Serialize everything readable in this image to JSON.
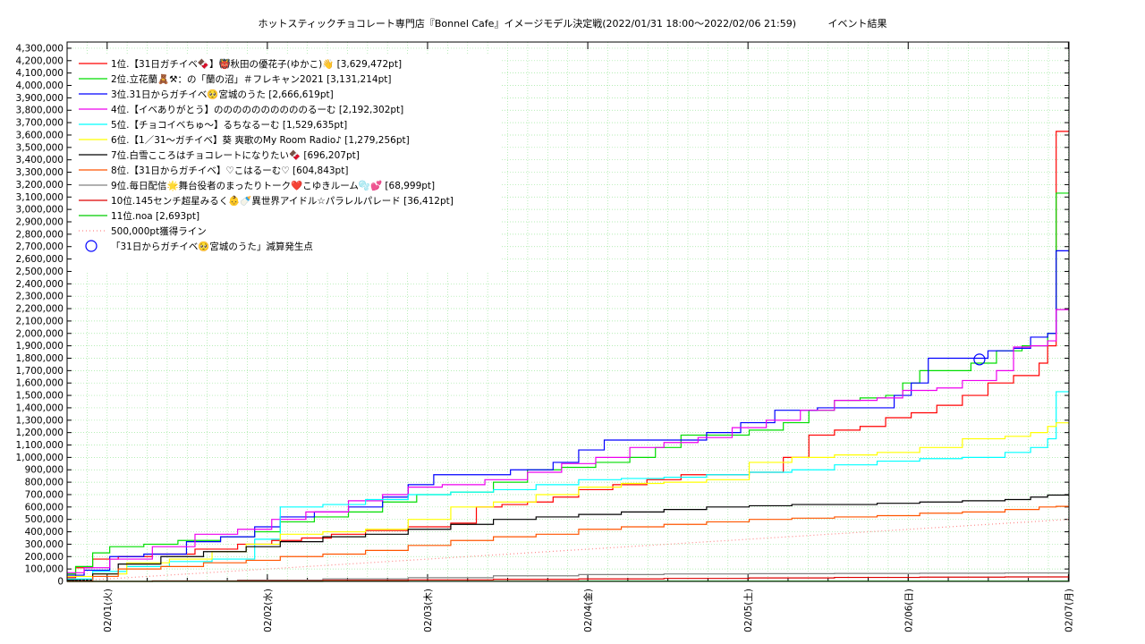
{
  "chart_data": {
    "type": "line",
    "title": "ホットスティックチョコレート専門店『Bonnel Cafe』イメージモデル決定戦(2022/01/31 18:00～2022/02/06 21:59)",
    "subtitle": "イベント結果",
    "xlabel": "",
    "ylabel": "",
    "x_ticks": [
      "02/01(火)",
      "02/02(水)",
      "02/03(木)",
      "02/04(金)",
      "02/05(土)",
      "02/06(日)",
      "02/07(月)"
    ],
    "x_range": [
      "2022-01-31 18:00",
      "2022-02-07 00:05"
    ],
    "ylim": [
      0,
      4350000
    ],
    "y_tick_step": 100000,
    "grid": true,
    "legend_position": "top-left",
    "series": [
      {
        "name": "1位.【31日ガチイベ🍫】👹秋田の優花子(ゆかこ)👋 [3,629,472pt]",
        "color": "#ff0000",
        "points": [
          [
            0,
            30000
          ],
          [
            2,
            110000
          ],
          [
            6,
            180000
          ],
          [
            12,
            200000
          ],
          [
            20,
            220000
          ],
          [
            30,
            260000
          ],
          [
            40,
            300000
          ],
          [
            48,
            330000
          ],
          [
            55,
            350000
          ],
          [
            62,
            380000
          ],
          [
            70,
            410000
          ],
          [
            80,
            440000
          ],
          [
            90,
            470000
          ],
          [
            96,
            600000
          ],
          [
            102,
            620000
          ],
          [
            108,
            640000
          ],
          [
            114,
            680000
          ],
          [
            120,
            740000
          ],
          [
            128,
            780000
          ],
          [
            136,
            820000
          ],
          [
            144,
            860000
          ],
          [
            152,
            860000
          ],
          [
            160,
            880000
          ],
          [
            168,
            1000000
          ],
          [
            174,
            1180000
          ],
          [
            180,
            1220000
          ],
          [
            186,
            1250000
          ],
          [
            192,
            1320000
          ],
          [
            198,
            1360000
          ],
          [
            204,
            1420000
          ],
          [
            210,
            1500000
          ],
          [
            216,
            1600000
          ],
          [
            222,
            1660000
          ],
          [
            228,
            1760000
          ],
          [
            230,
            1900000
          ],
          [
            232,
            3629472
          ],
          [
            235,
            3629472
          ]
        ]
      },
      {
        "name": "2位.立花蘭🧸⚒：の「蘭の沼」＃フレキャン2021 [3,131,214pt]",
        "color": "#00dd00",
        "points": [
          [
            0,
            60000
          ],
          [
            2,
            120000
          ],
          [
            6,
            230000
          ],
          [
            10,
            280000
          ],
          [
            18,
            300000
          ],
          [
            26,
            330000
          ],
          [
            36,
            360000
          ],
          [
            44,
            400000
          ],
          [
            50,
            480000
          ],
          [
            58,
            520000
          ],
          [
            66,
            560000
          ],
          [
            74,
            640000
          ],
          [
            82,
            700000
          ],
          [
            90,
            720000
          ],
          [
            100,
            800000
          ],
          [
            108,
            900000
          ],
          [
            116,
            920000
          ],
          [
            124,
            960000
          ],
          [
            132,
            1000000
          ],
          [
            138,
            1080000
          ],
          [
            144,
            1180000
          ],
          [
            152,
            1180000
          ],
          [
            160,
            1220000
          ],
          [
            168,
            1280000
          ],
          [
            174,
            1380000
          ],
          [
            180,
            1460000
          ],
          [
            186,
            1480000
          ],
          [
            192,
            1500000
          ],
          [
            196,
            1600000
          ],
          [
            200,
            1700000
          ],
          [
            206,
            1700000
          ],
          [
            212,
            1760000
          ],
          [
            218,
            1860000
          ],
          [
            224,
            1900000
          ],
          [
            230,
            2000000
          ],
          [
            232,
            3131214
          ],
          [
            235,
            3131214
          ]
        ]
      },
      {
        "name": "3位.31日からガチイベ🥺宮城のうた [2,666,619pt]",
        "color": "#0000ff",
        "points": [
          [
            0,
            50000
          ],
          [
            4,
            90000
          ],
          [
            10,
            200000
          ],
          [
            18,
            220000
          ],
          [
            28,
            320000
          ],
          [
            36,
            360000
          ],
          [
            44,
            440000
          ],
          [
            50,
            520000
          ],
          [
            58,
            560000
          ],
          [
            66,
            600000
          ],
          [
            74,
            680000
          ],
          [
            80,
            780000
          ],
          [
            86,
            860000
          ],
          [
            94,
            860000
          ],
          [
            104,
            900000
          ],
          [
            114,
            960000
          ],
          [
            120,
            1060000
          ],
          [
            126,
            1140000
          ],
          [
            140,
            1140000
          ],
          [
            150,
            1200000
          ],
          [
            158,
            1280000
          ],
          [
            166,
            1380000
          ],
          [
            176,
            1400000
          ],
          [
            186,
            1400000
          ],
          [
            194,
            1500000
          ],
          [
            198,
            1600000
          ],
          [
            202,
            1800000
          ],
          [
            214,
            1800000
          ],
          [
            216,
            1860000
          ],
          [
            222,
            1880000
          ],
          [
            226,
            1970000
          ],
          [
            230,
            2000000
          ],
          [
            232,
            2666619
          ],
          [
            235,
            2666619
          ]
        ]
      },
      {
        "name": "4位.【イベありがとう】ののののののののののるーむ [2,192,302pt]",
        "color": "#ee00ee",
        "points": [
          [
            0,
            70000
          ],
          [
            4,
            110000
          ],
          [
            10,
            180000
          ],
          [
            20,
            280000
          ],
          [
            30,
            380000
          ],
          [
            40,
            420000
          ],
          [
            48,
            500000
          ],
          [
            56,
            560000
          ],
          [
            66,
            650000
          ],
          [
            74,
            700000
          ],
          [
            80,
            760000
          ],
          [
            88,
            780000
          ],
          [
            98,
            820000
          ],
          [
            108,
            880000
          ],
          [
            116,
            950000
          ],
          [
            124,
            1000000
          ],
          [
            132,
            1080000
          ],
          [
            140,
            1120000
          ],
          [
            148,
            1160000
          ],
          [
            156,
            1240000
          ],
          [
            164,
            1300000
          ],
          [
            172,
            1380000
          ],
          [
            180,
            1460000
          ],
          [
            190,
            1480000
          ],
          [
            196,
            1540000
          ],
          [
            204,
            1560000
          ],
          [
            210,
            1620000
          ],
          [
            218,
            1700000
          ],
          [
            222,
            1890000
          ],
          [
            226,
            1900000
          ],
          [
            230,
            1940000
          ],
          [
            232,
            2192302
          ],
          [
            235,
            2192302
          ]
        ]
      },
      {
        "name": "5位.【チョコイベちゅ〜】るちなるーむ [1,529,635pt]",
        "color": "#00ffff",
        "points": [
          [
            0,
            20000
          ],
          [
            6,
            80000
          ],
          [
            14,
            120000
          ],
          [
            24,
            160000
          ],
          [
            34,
            180000
          ],
          [
            44,
            340000
          ],
          [
            50,
            600000
          ],
          [
            60,
            620000
          ],
          [
            70,
            660000
          ],
          [
            80,
            700000
          ],
          [
            90,
            720000
          ],
          [
            100,
            740000
          ],
          [
            110,
            780000
          ],
          [
            120,
            820000
          ],
          [
            130,
            830000
          ],
          [
            140,
            840000
          ],
          [
            150,
            860000
          ],
          [
            160,
            880000
          ],
          [
            170,
            900000
          ],
          [
            180,
            940000
          ],
          [
            190,
            970000
          ],
          [
            200,
            990000
          ],
          [
            210,
            1000000
          ],
          [
            220,
            1040000
          ],
          [
            226,
            1080000
          ],
          [
            230,
            1150000
          ],
          [
            232,
            1529635
          ],
          [
            235,
            1529635
          ]
        ]
      },
      {
        "name": "6位.【1／31〜ガチイベ】葵 爽歌のMy Room Radio♪ [1,279,256pt]",
        "color": "#ffff00",
        "points": [
          [
            0,
            40000
          ],
          [
            6,
            60000
          ],
          [
            14,
            150000
          ],
          [
            24,
            180000
          ],
          [
            34,
            240000
          ],
          [
            42,
            300000
          ],
          [
            50,
            380000
          ],
          [
            60,
            400000
          ],
          [
            70,
            420000
          ],
          [
            80,
            500000
          ],
          [
            90,
            600000
          ],
          [
            100,
            640000
          ],
          [
            110,
            700000
          ],
          [
            120,
            760000
          ],
          [
            130,
            790000
          ],
          [
            140,
            800000
          ],
          [
            150,
            820000
          ],
          [
            160,
            960000
          ],
          [
            170,
            1000000
          ],
          [
            180,
            1020000
          ],
          [
            190,
            1040000
          ],
          [
            200,
            1080000
          ],
          [
            210,
            1150000
          ],
          [
            220,
            1170000
          ],
          [
            226,
            1200000
          ],
          [
            230,
            1250000
          ],
          [
            232,
            1279256
          ],
          [
            235,
            1279256
          ]
        ]
      },
      {
        "name": "7位.白雪こころはチョコレートになりたい🍫 [696,207pt]",
        "color": "#000000",
        "points": [
          [
            0,
            10000
          ],
          [
            6,
            60000
          ],
          [
            12,
            140000
          ],
          [
            22,
            200000
          ],
          [
            32,
            240000
          ],
          [
            42,
            280000
          ],
          [
            50,
            320000
          ],
          [
            60,
            360000
          ],
          [
            70,
            380000
          ],
          [
            80,
            420000
          ],
          [
            90,
            460000
          ],
          [
            100,
            500000
          ],
          [
            110,
            520000
          ],
          [
            120,
            540000
          ],
          [
            130,
            560000
          ],
          [
            140,
            580000
          ],
          [
            150,
            600000
          ],
          [
            160,
            610000
          ],
          [
            170,
            620000
          ],
          [
            180,
            620000
          ],
          [
            190,
            630000
          ],
          [
            200,
            640000
          ],
          [
            210,
            650000
          ],
          [
            220,
            660000
          ],
          [
            226,
            680000
          ],
          [
            230,
            696207
          ],
          [
            235,
            696207
          ]
        ]
      },
      {
        "name": "8位.【31日からガチイベ】♡こはるーむ♡ [604,843pt]",
        "color": "#ff5500",
        "points": [
          [
            0,
            0
          ],
          [
            6,
            40000
          ],
          [
            12,
            100000
          ],
          [
            22,
            120000
          ],
          [
            32,
            150000
          ],
          [
            42,
            170000
          ],
          [
            50,
            200000
          ],
          [
            60,
            220000
          ],
          [
            70,
            250000
          ],
          [
            80,
            290000
          ],
          [
            90,
            330000
          ],
          [
            100,
            360000
          ],
          [
            110,
            380000
          ],
          [
            120,
            420000
          ],
          [
            130,
            440000
          ],
          [
            140,
            460000
          ],
          [
            150,
            480000
          ],
          [
            160,
            500000
          ],
          [
            170,
            510000
          ],
          [
            180,
            520000
          ],
          [
            190,
            530000
          ],
          [
            200,
            550000
          ],
          [
            210,
            560000
          ],
          [
            220,
            580000
          ],
          [
            228,
            600000
          ],
          [
            232,
            604843
          ],
          [
            235,
            604843
          ]
        ]
      },
      {
        "name": "9位.毎日配信🌟舞台役者のまったりトーク❤️こゆきルーム🫧💕 [68,999pt]",
        "color": "#808080",
        "points": [
          [
            0,
            0
          ],
          [
            20,
            5000
          ],
          [
            40,
            10000
          ],
          [
            60,
            20000
          ],
          [
            80,
            30000
          ],
          [
            100,
            45000
          ],
          [
            120,
            55000
          ],
          [
            140,
            60000
          ],
          [
            160,
            62000
          ],
          [
            180,
            64000
          ],
          [
            200,
            66000
          ],
          [
            220,
            68000
          ],
          [
            235,
            68999
          ]
        ]
      },
      {
        "name": "10位.145センチ超星みるく👶🍼異世界アイドル☆パラレルパレード [36,412pt]",
        "color": "#dd0000",
        "points": [
          [
            0,
            0
          ],
          [
            20,
            2000
          ],
          [
            40,
            5000
          ],
          [
            60,
            8000
          ],
          [
            80,
            12000
          ],
          [
            100,
            16000
          ],
          [
            120,
            20000
          ],
          [
            140,
            24000
          ],
          [
            160,
            28000
          ],
          [
            180,
            32000
          ],
          [
            200,
            34000
          ],
          [
            220,
            36000
          ],
          [
            235,
            36412
          ]
        ]
      },
      {
        "name": "11位.noa [2,693pt]",
        "color": "#00cc00",
        "points": [
          [
            0,
            0
          ],
          [
            60,
            1000
          ],
          [
            120,
            1800
          ],
          [
            180,
            2400
          ],
          [
            235,
            2693
          ]
        ]
      },
      {
        "name": "500,000pt獲得ライン",
        "color": "#ff8888",
        "dashed": true,
        "points": [
          [
            0,
            0
          ],
          [
            235,
            500000
          ]
        ]
      }
    ],
    "annotation": {
      "label": "「31日からガチイベ🥺宮城のうた」減算発生点",
      "color": "#0000ff",
      "x": 214,
      "y": 1790000
    },
    "x_unit": "hours since 2022-01-31 18:00"
  }
}
